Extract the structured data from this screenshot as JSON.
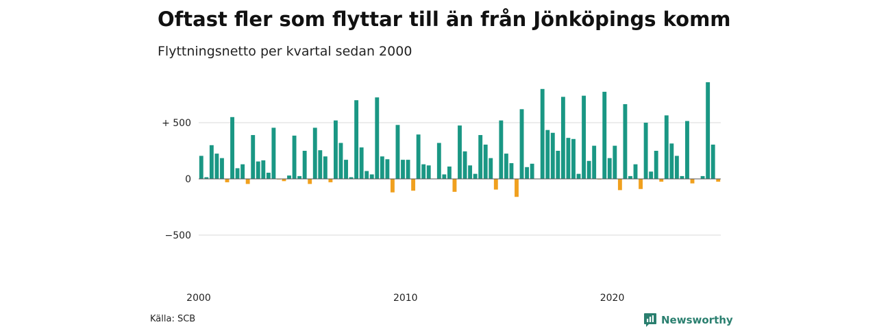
{
  "chart_data": {
    "type": "bar",
    "title": "Oftast fler som flyttar till än från Jönköpings kommun",
    "subtitle": "Flyttningsnetto per kvartal sedan 2000",
    "source": "Källa: SCB",
    "brand": "Newsworthy",
    "x_ticks": [
      {
        "year": 2000,
        "label": "2000"
      },
      {
        "year": 2010,
        "label": "2010"
      },
      {
        "year": 2020,
        "label": "2020"
      }
    ],
    "y_ticks": [
      {
        "value": 500,
        "label": "+ 500"
      },
      {
        "value": 0,
        "label": "0"
      },
      {
        "value": -500,
        "label": "−500"
      }
    ],
    "ylim": [
      -850,
      900
    ],
    "start_year": 2000,
    "colors": {
      "positive": "#1a9784",
      "negative": "#f0a01e",
      "grid": "#d8d8d8",
      "zero": "#555555"
    },
    "values": [
      205,
      15,
      300,
      225,
      185,
      -30,
      550,
      95,
      130,
      -45,
      390,
      155,
      165,
      55,
      455,
      -5,
      -20,
      30,
      385,
      25,
      250,
      -45,
      455,
      255,
      200,
      -30,
      520,
      320,
      170,
      15,
      700,
      280,
      70,
      40,
      725,
      200,
      175,
      -120,
      480,
      170,
      170,
      -105,
      395,
      130,
      120,
      0,
      320,
      40,
      110,
      -115,
      475,
      245,
      120,
      45,
      390,
      305,
      185,
      -95,
      520,
      225,
      140,
      -160,
      620,
      105,
      135,
      0,
      800,
      435,
      410,
      250,
      730,
      365,
      355,
      45,
      740,
      160,
      295,
      -5,
      775,
      185,
      295,
      -100,
      665,
      25,
      130,
      -90,
      500,
      65,
      250,
      -25,
      565,
      315,
      205,
      25,
      515,
      -40,
      0,
      25,
      860,
      305,
      -25
    ]
  }
}
